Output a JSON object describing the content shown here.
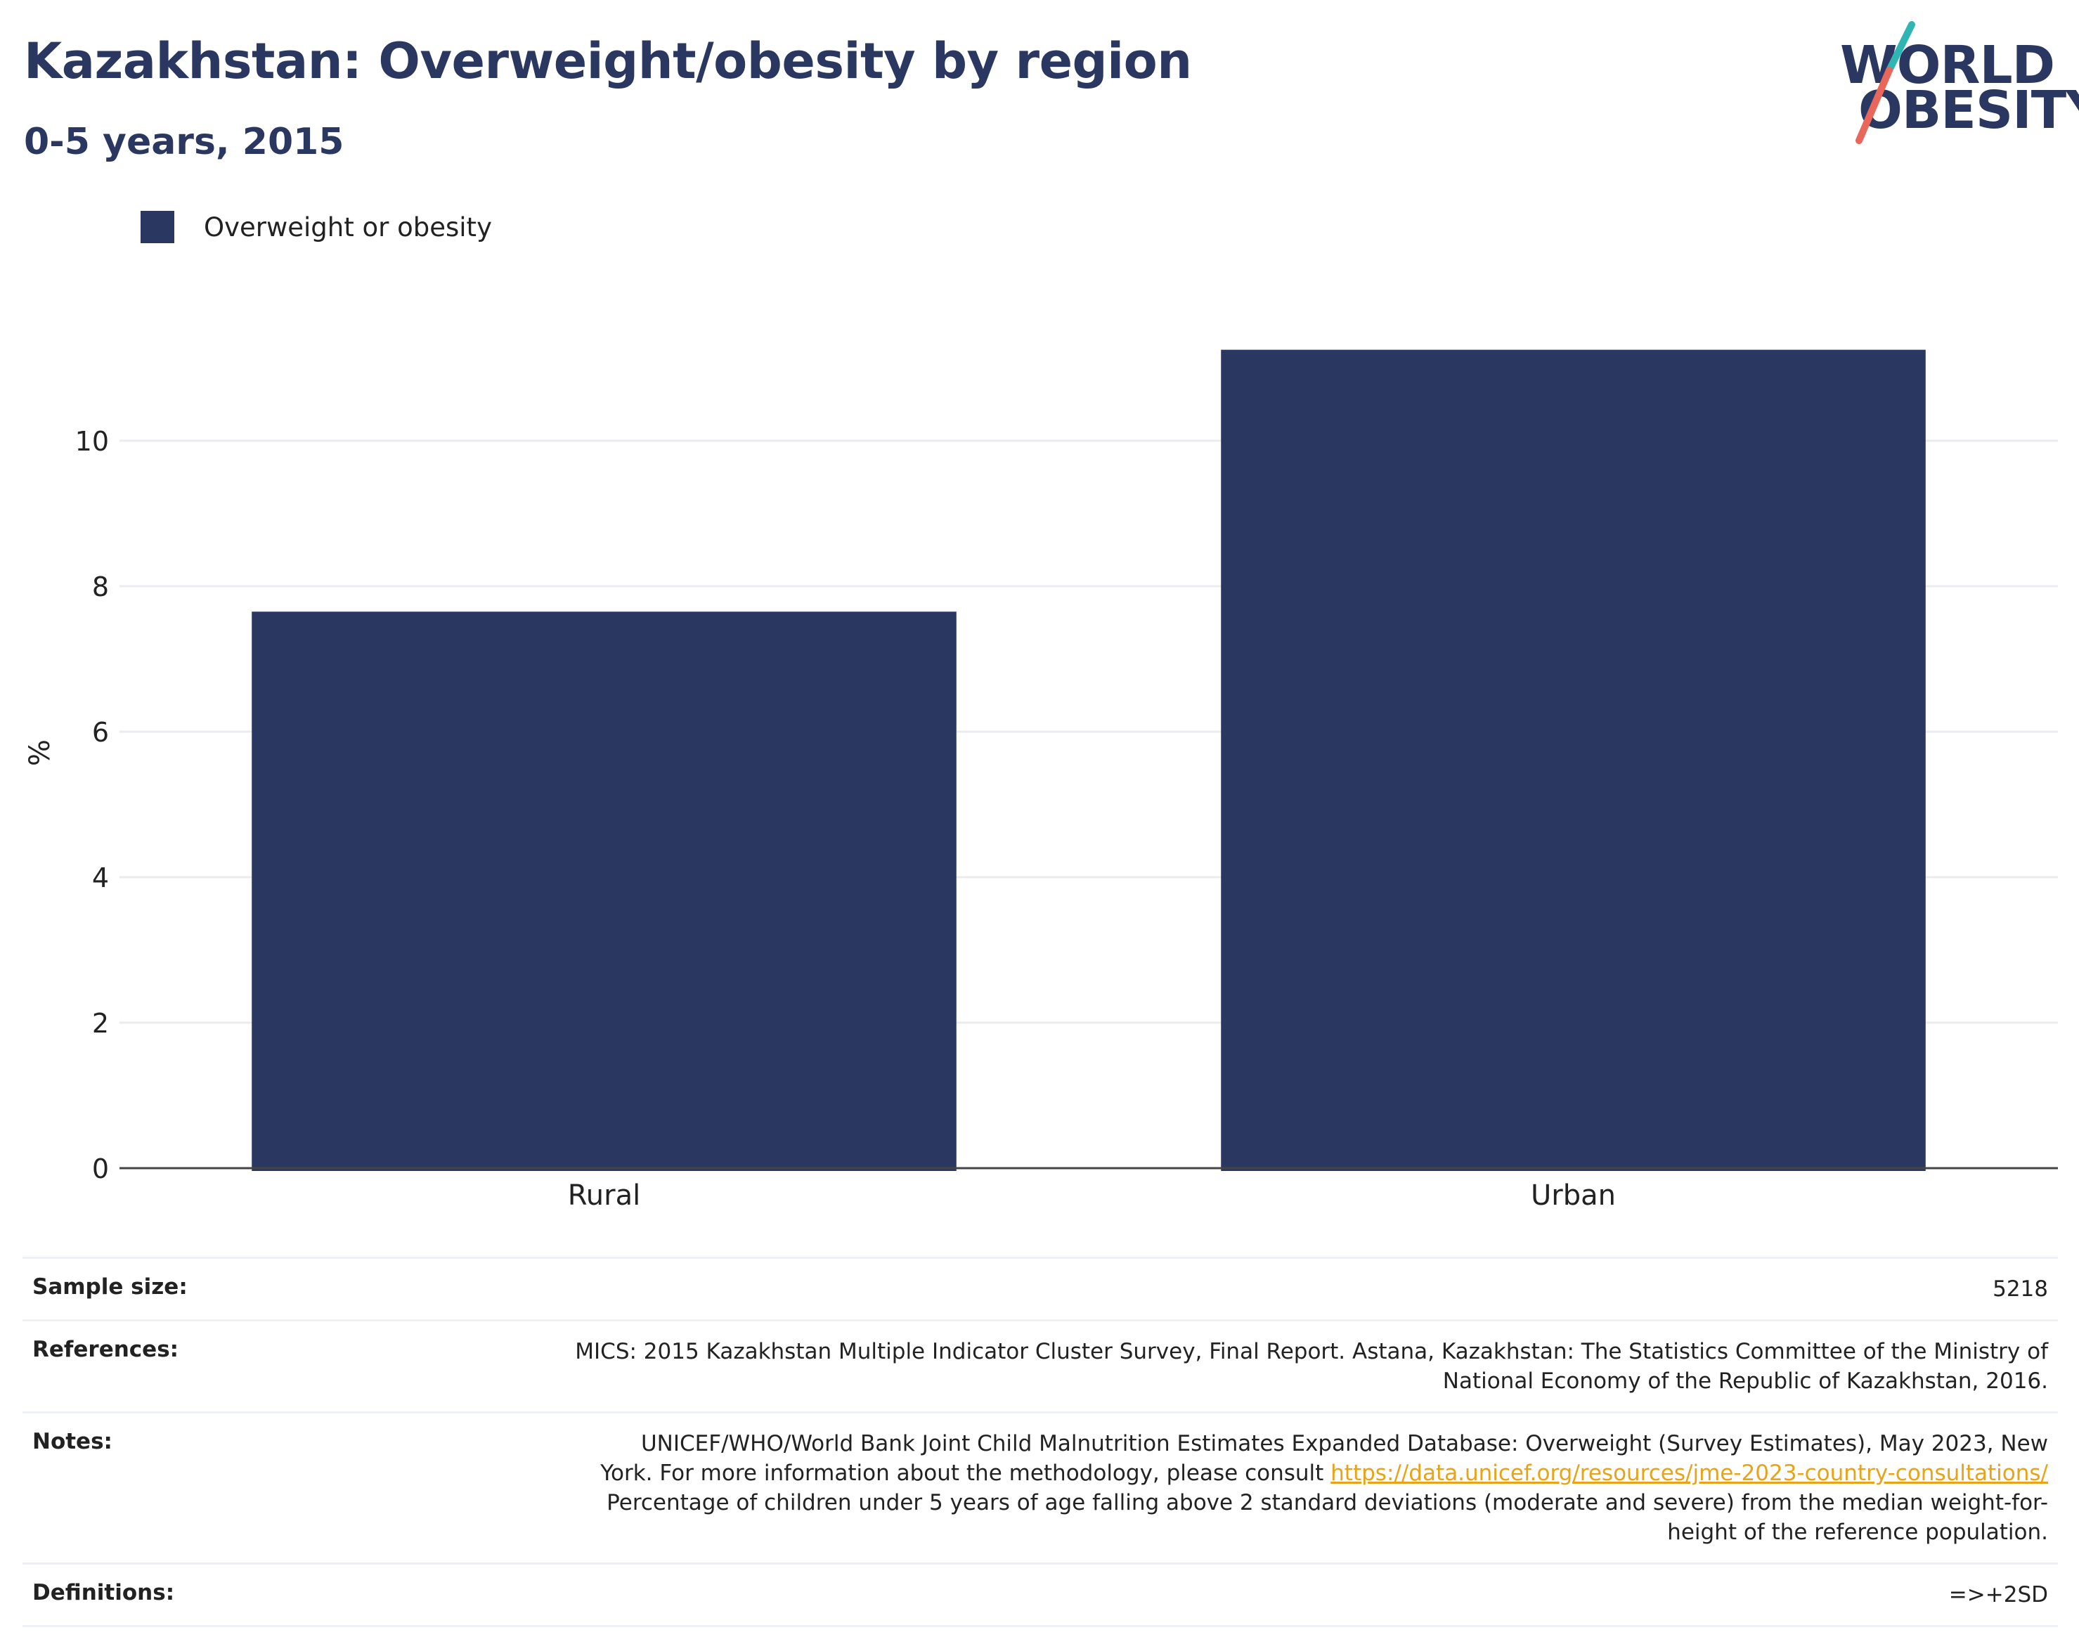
{
  "header": {
    "title": "Kazakhstan: Overweight/obesity by region",
    "subtitle": "0-5 years, 2015"
  },
  "logo": {
    "line1": "WORLD",
    "line2": "OBESITY"
  },
  "colors": {
    "bar": "#2a3761",
    "grid": "#ebebf0",
    "axis": "#444444",
    "link": "#e8a317",
    "logo_teal": "#2fb5b4",
    "logo_coral": "#e8675a"
  },
  "chart_data": {
    "type": "bar",
    "title": "Kazakhstan: Overweight/obesity by region",
    "subtitle": "0-5 years, 2015",
    "xlabel": "",
    "ylabel": "%",
    "categories": [
      "Rural",
      "Urban"
    ],
    "series": [
      {
        "name": "Overweight or obesity",
        "values": [
          7.65,
          11.25
        ]
      }
    ],
    "ylim": [
      0,
      12
    ],
    "yticks": [
      0,
      2,
      4,
      6,
      8,
      10
    ],
    "grid": true,
    "legend": "top-left"
  },
  "meta": {
    "sample_size": {
      "label": "Sample size:",
      "value": "5218"
    },
    "references": {
      "label": "References:",
      "line1": "MICS: 2015 Kazakhstan Multiple Indicator Cluster Survey, Final Report. Astana, Kazakhstan: The Statistics Committee of the Ministry of",
      "line2": "National Economy of the Republic of Kazakhstan, 2016."
    },
    "notes": {
      "label": "Notes:",
      "line1": "UNICEF/WHO/World Bank Joint Child Malnutrition Estimates Expanded Database: Overweight (Survey Estimates), May 2023, New",
      "line2_prefix": "York. For more information about the methodology, please consult ",
      "link": "https://data.unicef.org/resources/jme-2023-country-consultations/",
      "line3": "Percentage of children under 5 years of age falling above 2 standard deviations (moderate and severe) from the median weight-for-",
      "line4": "height of the reference population."
    },
    "definitions": {
      "label": "Definitions:",
      "value": "=>+2SD"
    }
  }
}
